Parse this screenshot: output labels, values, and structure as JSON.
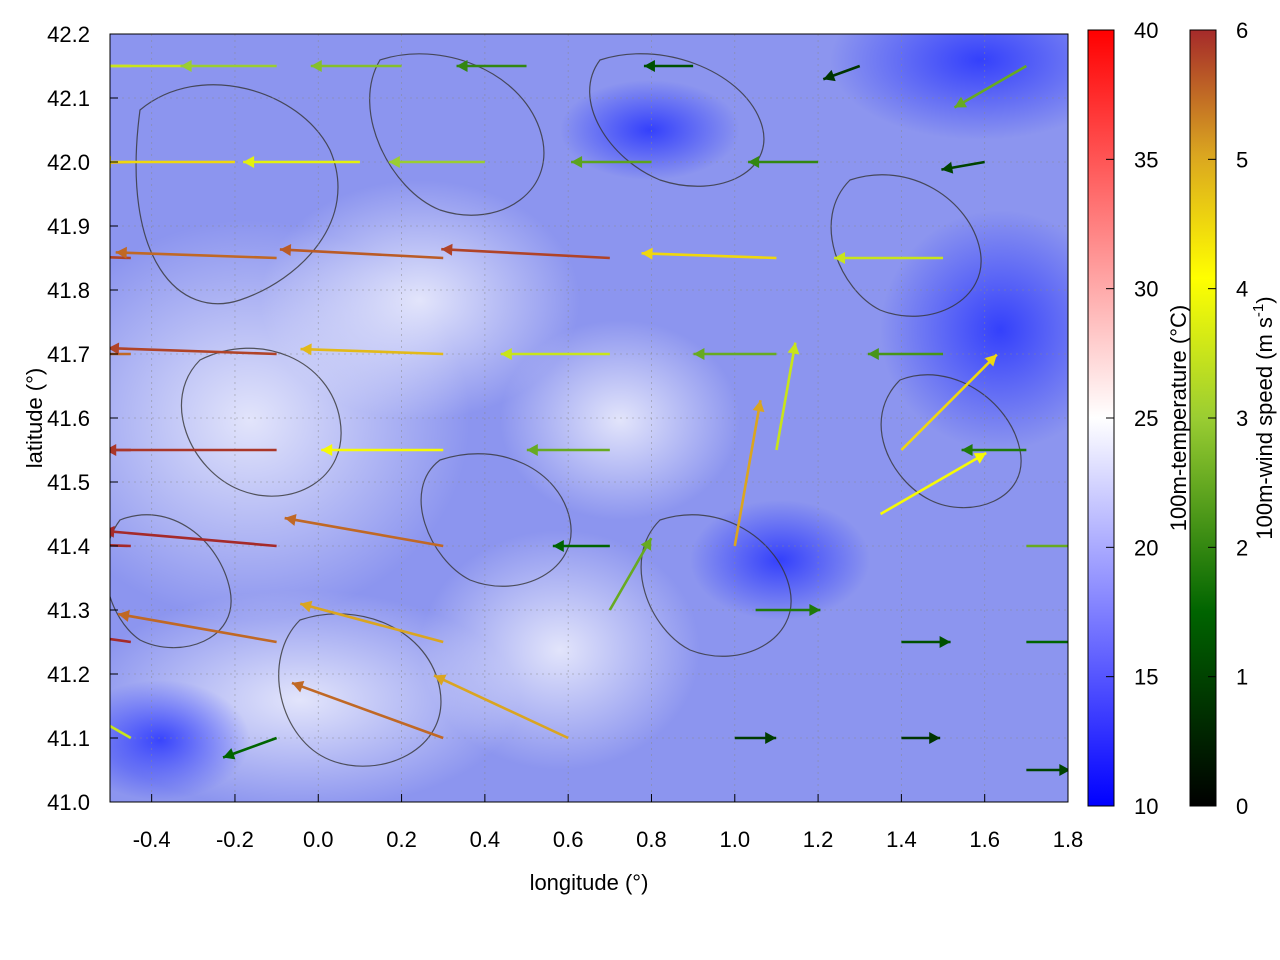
{
  "chart_data": {
    "type": "heatmap",
    "overlay": "wind vectors with contour lines",
    "xlabel": "longitude (°)",
    "ylabel": "latitude (°)",
    "xlim": [
      -0.5,
      1.8
    ],
    "ylim": [
      41.0,
      42.2
    ],
    "x_ticks": [
      "-0.4",
      "-0.2",
      "0.0",
      "0.2",
      "0.4",
      "0.6",
      "0.8",
      "1.0",
      "1.2",
      "1.4",
      "1.6",
      "1.8"
    ],
    "y_ticks": [
      "41.0",
      "41.1",
      "41.2",
      "41.3",
      "41.4",
      "41.5",
      "41.6",
      "41.7",
      "41.8",
      "41.9",
      "42.0",
      "42.1",
      "42.2"
    ],
    "grid": true,
    "temperature_colorbar": {
      "label": "100m-temperature (°C)",
      "range": [
        10,
        40
      ],
      "ticks": [
        "10",
        "15",
        "20",
        "25",
        "30",
        "35",
        "40"
      ],
      "colors": [
        "#0000ff",
        "#ffffff",
        "#ff0000"
      ]
    },
    "wind_colorbar": {
      "label_main": "100m-wind speed (m s",
      "label_sup": "-1",
      "label_end": ")",
      "range": [
        0,
        6
      ],
      "ticks": [
        "0",
        "1",
        "2",
        "3",
        "4",
        "5",
        "6"
      ],
      "colors": [
        "#000000",
        "#006400",
        "#9acd32",
        "#ffff00",
        "#daa520",
        "#a52a2a"
      ]
    },
    "wind_field": [
      {
        "lon": -0.45,
        "lat": 42.15,
        "speed": 4.2,
        "dir": 180
      },
      {
        "lon": -0.3,
        "lat": 42.15,
        "speed": 3.5,
        "dir": 180
      },
      {
        "lon": -0.1,
        "lat": 42.15,
        "speed": 3.0,
        "dir": 180
      },
      {
        "lon": 0.2,
        "lat": 42.15,
        "speed": 2.8,
        "dir": 180
      },
      {
        "lon": 0.5,
        "lat": 42.15,
        "speed": 2.0,
        "dir": 180
      },
      {
        "lon": 0.9,
        "lat": 42.15,
        "speed": 1.2,
        "dir": 180
      },
      {
        "lon": 1.3,
        "lat": 42.15,
        "speed": 0.8,
        "dir": 200
      },
      {
        "lon": 1.7,
        "lat": 42.15,
        "speed": 2.5,
        "dir": 210
      },
      {
        "lon": -0.45,
        "lat": 42.0,
        "speed": 5.0,
        "dir": 182
      },
      {
        "lon": -0.2,
        "lat": 42.0,
        "speed": 4.5,
        "dir": 180
      },
      {
        "lon": 0.1,
        "lat": 42.0,
        "speed": 3.8,
        "dir": 180
      },
      {
        "lon": 0.4,
        "lat": 42.0,
        "speed": 3.0,
        "dir": 180
      },
      {
        "lon": 0.8,
        "lat": 42.0,
        "speed": 2.4,
        "dir": 180
      },
      {
        "lon": 1.2,
        "lat": 42.0,
        "speed": 2.0,
        "dir": 180
      },
      {
        "lon": 1.6,
        "lat": 42.0,
        "speed": 1.0,
        "dir": 190
      },
      {
        "lon": -0.45,
        "lat": 41.85,
        "speed": 5.8,
        "dir": 178
      },
      {
        "lon": -0.1,
        "lat": 41.85,
        "speed": 5.5,
        "dir": 178
      },
      {
        "lon": 0.3,
        "lat": 41.85,
        "speed": 5.6,
        "dir": 177
      },
      {
        "lon": 0.7,
        "lat": 41.85,
        "speed": 5.8,
        "dir": 177
      },
      {
        "lon": 1.1,
        "lat": 41.85,
        "speed": 4.5,
        "dir": 178
      },
      {
        "lon": 1.5,
        "lat": 41.85,
        "speed": 3.5,
        "dir": 180
      },
      {
        "lon": -0.45,
        "lat": 41.7,
        "speed": 5.5,
        "dir": 180
      },
      {
        "lon": -0.1,
        "lat": 41.7,
        "speed": 5.8,
        "dir": 178
      },
      {
        "lon": 0.3,
        "lat": 41.7,
        "speed": 4.8,
        "dir": 178
      },
      {
        "lon": 0.7,
        "lat": 41.7,
        "speed": 3.5,
        "dir": 180
      },
      {
        "lon": 1.1,
        "lat": 41.7,
        "speed": 2.5,
        "dir": 180
      },
      {
        "lon": 1.5,
        "lat": 41.7,
        "speed": 2.2,
        "dir": 180
      },
      {
        "lon": -0.45,
        "lat": 41.55,
        "speed": 6.0,
        "dir": 180
      },
      {
        "lon": -0.1,
        "lat": 41.55,
        "speed": 5.9,
        "dir": 180
      },
      {
        "lon": 0.3,
        "lat": 41.55,
        "speed": 4.0,
        "dir": 180
      },
      {
        "lon": 0.7,
        "lat": 41.55,
        "speed": 2.5,
        "dir": 180
      },
      {
        "lon": 1.1,
        "lat": 41.55,
        "speed": 3.5,
        "dir": 80
      },
      {
        "lon": 1.4,
        "lat": 41.55,
        "speed": 4.5,
        "dir": 45
      },
      {
        "lon": 1.7,
        "lat": 41.55,
        "speed": 1.8,
        "dir": 180
      },
      {
        "lon": -0.45,
        "lat": 41.4,
        "speed": 6.0,
        "dir": 178
      },
      {
        "lon": -0.1,
        "lat": 41.4,
        "speed": 6.0,
        "dir": 175
      },
      {
        "lon": 0.3,
        "lat": 41.4,
        "speed": 5.5,
        "dir": 170
      },
      {
        "lon": 0.7,
        "lat": 41.4,
        "speed": 1.5,
        "dir": 180
      },
      {
        "lon": 1.0,
        "lat": 41.4,
        "speed": 5.0,
        "dir": 80
      },
      {
        "lon": 1.35,
        "lat": 41.45,
        "speed": 4.0,
        "dir": 30
      },
      {
        "lon": 1.7,
        "lat": 41.4,
        "speed": 2.5,
        "dir": 0
      },
      {
        "lon": -0.45,
        "lat": 41.25,
        "speed": 6.0,
        "dir": 172
      },
      {
        "lon": -0.1,
        "lat": 41.25,
        "speed": 5.5,
        "dir": 170
      },
      {
        "lon": 0.3,
        "lat": 41.25,
        "speed": 5.0,
        "dir": 165
      },
      {
        "lon": 0.7,
        "lat": 41.3,
        "speed": 2.5,
        "dir": 60
      },
      {
        "lon": 1.05,
        "lat": 41.3,
        "speed": 1.8,
        "dir": 0
      },
      {
        "lon": 1.4,
        "lat": 41.25,
        "speed": 1.2,
        "dir": 0
      },
      {
        "lon": 1.7,
        "lat": 41.25,
        "speed": 1.5,
        "dir": 0
      },
      {
        "lon": -0.45,
        "lat": 41.1,
        "speed": 3.5,
        "dir": 150
      },
      {
        "lon": -0.1,
        "lat": 41.1,
        "speed": 1.5,
        "dir": 200
      },
      {
        "lon": 0.3,
        "lat": 41.1,
        "speed": 5.5,
        "dir": 160
      },
      {
        "lon": 0.6,
        "lat": 41.1,
        "speed": 5.0,
        "dir": 155
      },
      {
        "lon": 1.0,
        "lat": 41.1,
        "speed": 0.9,
        "dir": 0
      },
      {
        "lon": 1.4,
        "lat": 41.1,
        "speed": 0.8,
        "dir": 0
      },
      {
        "lon": 1.7,
        "lat": 41.05,
        "speed": 1.0,
        "dir": 0
      }
    ]
  }
}
